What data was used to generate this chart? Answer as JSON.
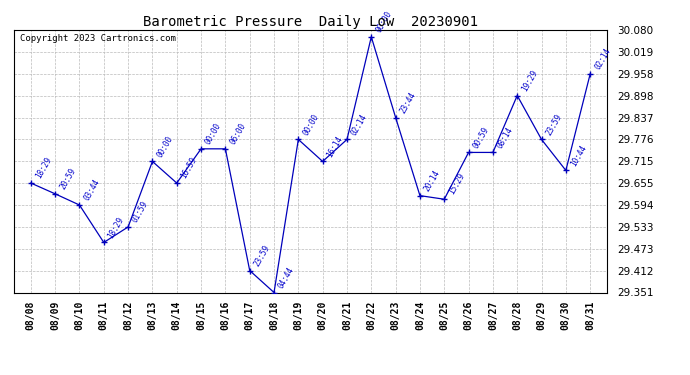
{
  "title": "Barometric Pressure  Daily Low  20230901",
  "copyright": "Copyright 2023 Cartronics.com",
  "background_color": "#ffffff",
  "line_color": "#0000bb",
  "grid_color": "#bbbbbb",
  "text_color": "#0000cc",
  "title_color": "#000000",
  "ylim_min": 29.351,
  "ylim_max": 30.08,
  "yticks": [
    29.351,
    29.412,
    29.473,
    29.533,
    29.594,
    29.655,
    29.715,
    29.776,
    29.837,
    29.898,
    29.958,
    30.019,
    30.08
  ],
  "dates": [
    "08/08",
    "08/09",
    "08/10",
    "08/11",
    "08/12",
    "08/13",
    "08/14",
    "08/15",
    "08/16",
    "08/17",
    "08/18",
    "08/19",
    "08/20",
    "08/21",
    "08/22",
    "08/23",
    "08/24",
    "08/25",
    "08/26",
    "08/27",
    "08/28",
    "08/29",
    "08/30",
    "08/31"
  ],
  "values": [
    29.655,
    29.625,
    29.594,
    29.49,
    29.533,
    29.715,
    29.655,
    29.75,
    29.75,
    29.412,
    29.351,
    29.776,
    29.715,
    29.776,
    30.061,
    29.837,
    29.62,
    29.61,
    29.74,
    29.74,
    29.898,
    29.776,
    29.69,
    29.958
  ],
  "point_labels": [
    "18:29",
    "20:59",
    "03:44",
    "18:29",
    "01:59",
    "00:00",
    "16:59",
    "00:00",
    "06:00",
    "23:59",
    "04:44",
    "00:00",
    "16:14",
    "02:14",
    "00:00",
    "23:44",
    "20:14",
    "15:29",
    "00:59",
    "08:14",
    "19:29",
    "23:59",
    "10:44",
    "02:14"
  ]
}
